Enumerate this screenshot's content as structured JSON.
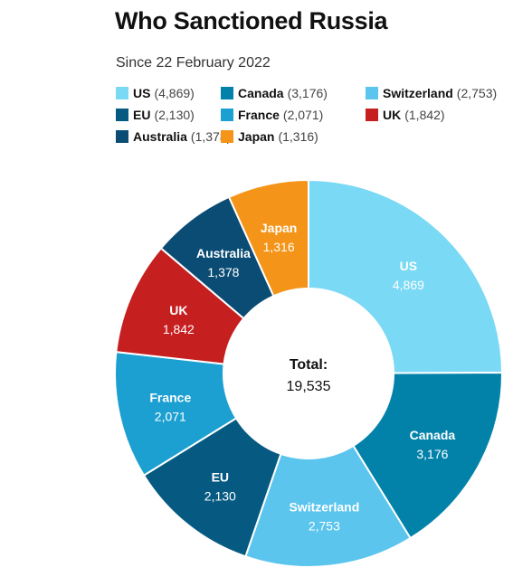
{
  "chart_data": {
    "type": "pie",
    "title": "Who Sanctioned Russia",
    "subtitle": "Since 22 February 2022",
    "center_label": "Total:",
    "center_value": "19,535",
    "series": [
      {
        "name": "US",
        "value": 4869,
        "label": "4,869",
        "color": "#7ad9f5"
      },
      {
        "name": "Canada",
        "value": 3176,
        "label": "3,176",
        "color": "#0282a9"
      },
      {
        "name": "Switzerland",
        "value": 2753,
        "label": "2,753",
        "color": "#5bc5ee"
      },
      {
        "name": "EU",
        "value": 2130,
        "label": "2,130",
        "color": "#065a82"
      },
      {
        "name": "France",
        "value": 2071,
        "label": "2,071",
        "color": "#1ca0d1"
      },
      {
        "name": "UK",
        "value": 1842,
        "label": "1,842",
        "color": "#c61f20"
      },
      {
        "name": "Australia",
        "value": 1378,
        "label": "1,378",
        "color": "#0b4c74"
      },
      {
        "name": "Japan",
        "value": 1316,
        "label": "1,316",
        "color": "#f49418"
      }
    ],
    "legend_placement": "top"
  }
}
